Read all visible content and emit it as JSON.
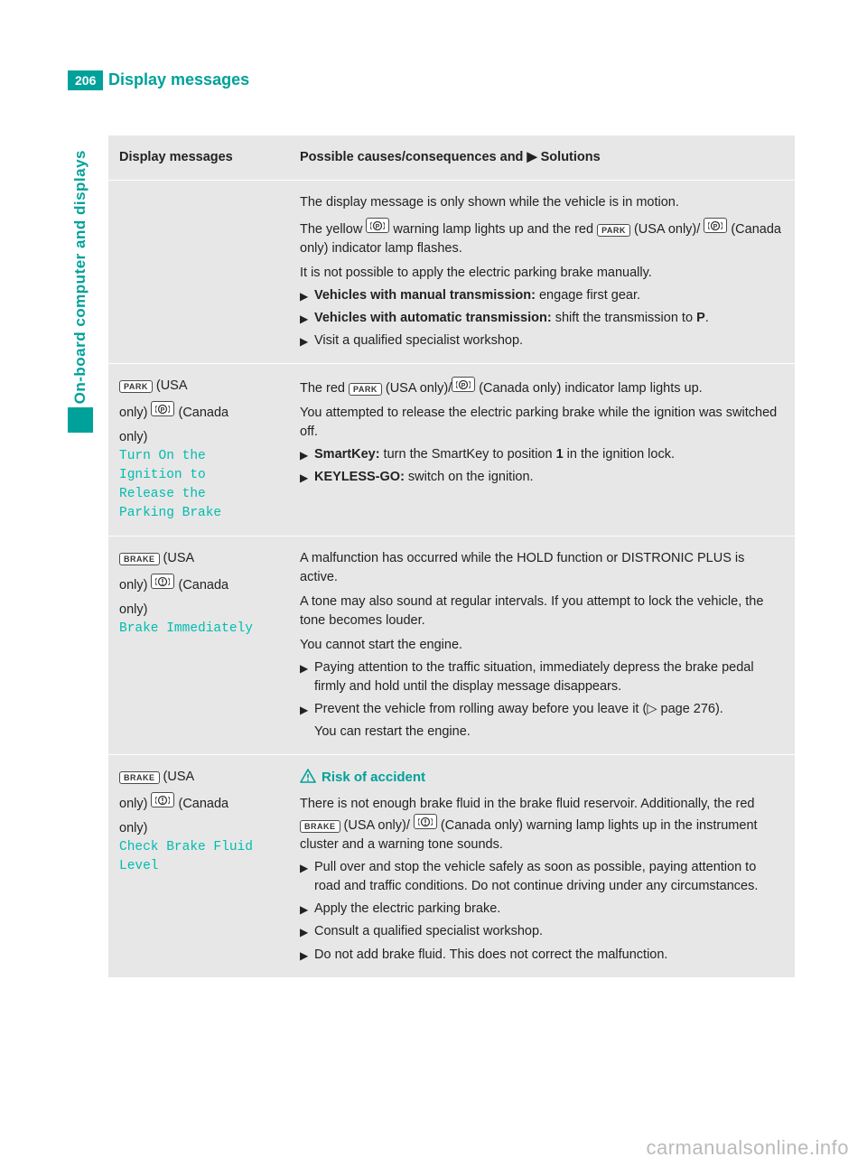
{
  "page": {
    "number": "206",
    "header_title": "Display messages",
    "side_tab": "On-board computer and displays",
    "watermark": "carmanualsonline.info"
  },
  "colors": {
    "teal": "#00a19a",
    "teal_light": "#00bcaf",
    "panel_bg": "#e7e7e7",
    "text": "#222222"
  },
  "icons": {
    "park": "PARK",
    "brake": "BRAKE",
    "p_circle": "P",
    "excl_circle": "!",
    "i_circle": "!"
  },
  "table": {
    "head_left": "Display messages",
    "head_right_prefix": "Possible causes/consequences and ",
    "head_right_suffix": " Solutions",
    "rows": [
      {
        "left_blocks": [],
        "right_blocks": [
          {
            "type": "text",
            "val": "The display message is only shown while the vehicle is in motion."
          },
          {
            "type": "text_icons",
            "parts": [
              {
                "t": "The yellow "
              },
              {
                "icon": "p_circle"
              },
              {
                "t": " warning lamp lights up and the red "
              },
              {
                "icon": "park"
              },
              {
                "t": " (USA only)/ "
              },
              {
                "icon": "p_circle"
              },
              {
                "t": " (Canada only) indicator lamp flashes."
              }
            ]
          },
          {
            "type": "text",
            "val": "It is not possible to apply the electric parking brake manually."
          },
          {
            "type": "bullet",
            "bold": "Vehicles with manual transmission:",
            "rest": " engage first gear."
          },
          {
            "type": "bullet",
            "bold": "Vehicles with automatic transmission:",
            "rest": " shift the transmission to ",
            "bold2": "P",
            "rest2": "."
          },
          {
            "type": "bullet",
            "rest": "Visit a qualified specialist workshop."
          }
        ]
      },
      {
        "left_blocks": [
          {
            "type": "icon_line",
            "icon": "park",
            "suffix": "(USA"
          },
          {
            "type": "icon_line2",
            "prefix": "only)",
            "icon": "p_circle",
            "suffix": "(Canada"
          },
          {
            "type": "plain",
            "val": "only)"
          },
          {
            "type": "teal",
            "val": "Turn On the"
          },
          {
            "type": "teal",
            "val": "Ignition to"
          },
          {
            "type": "teal",
            "val": "Release the"
          },
          {
            "type": "teal",
            "val": "Parking Brake"
          }
        ],
        "right_blocks": [
          {
            "type": "text_icons",
            "parts": [
              {
                "t": "The red "
              },
              {
                "icon": "park"
              },
              {
                "t": " (USA only)/"
              },
              {
                "icon": "p_circle"
              },
              {
                "t": " (Canada only) indicator lamp lights up."
              }
            ]
          },
          {
            "type": "text",
            "val": "You attempted to release the electric parking brake while the ignition was switched off."
          },
          {
            "type": "bullet",
            "bold": "SmartKey:",
            "rest": " turn the SmartKey to position ",
            "bold2": "1",
            "rest2": " in the ignition lock."
          },
          {
            "type": "bullet",
            "bold": "KEYLESS-GO:",
            "rest": " switch on the ignition."
          }
        ]
      },
      {
        "left_blocks": [
          {
            "type": "icon_line",
            "icon": "brake",
            "suffix": "(USA"
          },
          {
            "type": "icon_line2",
            "prefix": "only)",
            "icon": "excl_circle",
            "suffix": "(Canada"
          },
          {
            "type": "plain",
            "val": "only)"
          },
          {
            "type": "teal",
            "val": "Brake Immediately"
          }
        ],
        "right_blocks": [
          {
            "type": "text",
            "val": "A malfunction has occurred while the HOLD function or DISTRONIC PLUS is active."
          },
          {
            "type": "text",
            "val": "A tone may also sound at regular intervals. If you attempt to lock the vehicle, the tone becomes louder."
          },
          {
            "type": "text",
            "val": "You cannot start the engine."
          },
          {
            "type": "bullet",
            "rest": "Paying attention to the traffic situation, immediately depress the brake pedal firmly and hold until the display message disappears."
          },
          {
            "type": "bullet",
            "rest": "Prevent the vehicle from rolling away before you leave it (▷ page 276).",
            "after": "You can restart the engine."
          }
        ]
      },
      {
        "left_blocks": [
          {
            "type": "icon_line",
            "icon": "brake",
            "suffix": "(USA"
          },
          {
            "type": "icon_line2",
            "prefix": "only)",
            "icon": "excl_circle",
            "suffix": "(Canada"
          },
          {
            "type": "plain",
            "val": "only)"
          },
          {
            "type": "teal",
            "val": "Check Brake Fluid"
          },
          {
            "type": "teal",
            "val": "Level"
          }
        ],
        "right_blocks": [
          {
            "type": "risk",
            "val": "Risk of accident"
          },
          {
            "type": "text_icons",
            "parts": [
              {
                "t": "There is not enough brake fluid in the brake fluid reservoir. Additionally, the red "
              },
              {
                "icon": "brake"
              },
              {
                "t": " (USA only)/ "
              },
              {
                "icon": "i_circle"
              },
              {
                "t": " (Canada only) warning lamp lights up in the instrument cluster and a warning tone sounds."
              }
            ]
          },
          {
            "type": "bullet",
            "rest": "Pull over and stop the vehicle safely as soon as possible, paying attention to road and traffic conditions. Do not continue driving under any circumstances."
          },
          {
            "type": "bullet",
            "rest": "Apply the electric parking brake."
          },
          {
            "type": "bullet",
            "rest": "Consult a qualified specialist workshop."
          },
          {
            "type": "bullet",
            "rest": "Do not add brake fluid. This does not correct the malfunction."
          }
        ]
      }
    ]
  }
}
